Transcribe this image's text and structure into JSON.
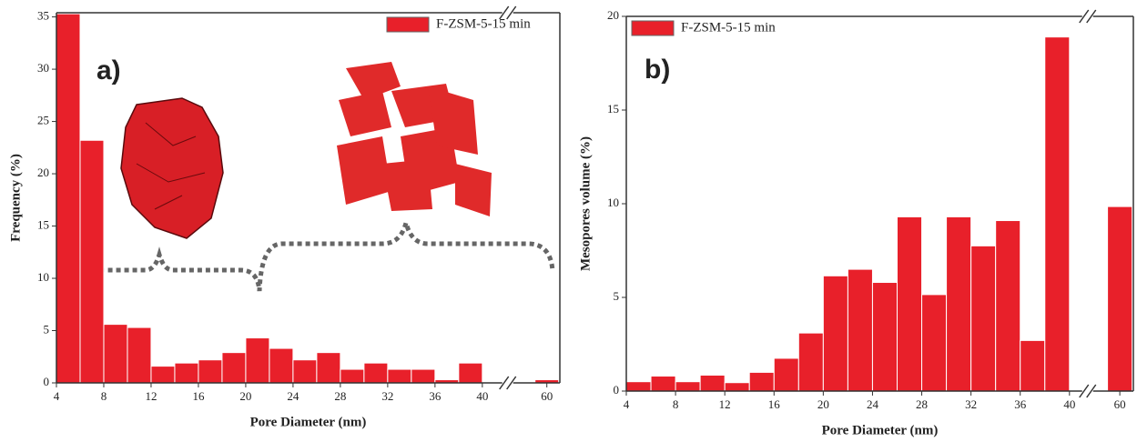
{
  "chart_data": [
    {
      "type": "bar",
      "panel_label": "a)",
      "x_label": "Pore Diameter (nm)",
      "y_label": "Frequency (%)",
      "x": [
        5,
        7,
        9,
        11,
        13,
        15,
        17,
        19,
        21,
        23,
        25,
        27,
        29,
        31,
        33,
        35,
        37,
        39,
        60
      ],
      "series": [
        {
          "name": "F-ZSM-5-15 min",
          "color": "#e8202a",
          "values": [
            35.3,
            23.2,
            5.6,
            5.3,
            1.6,
            1.9,
            2.2,
            2.9,
            4.3,
            3.3,
            2.2,
            2.9,
            1.3,
            1.9,
            1.3,
            1.3,
            0.3,
            1.9,
            0.3
          ]
        }
      ],
      "xlim": [
        4,
        62
      ],
      "xticks": [
        4,
        8,
        12,
        16,
        20,
        24,
        28,
        32,
        36,
        40,
        60
      ],
      "axis_break": true,
      "ylim": [
        0,
        35.4
      ],
      "yticks": [
        0,
        5,
        10,
        15,
        20,
        25,
        30,
        35
      ],
      "legend": "top-right"
    },
    {
      "type": "bar",
      "panel_label": "b)",
      "x_label": "Pore Diameter (nm)",
      "y_label": "Mesopores volume (%)",
      "x": [
        5,
        7,
        9,
        11,
        13,
        15,
        17,
        19,
        21,
        23,
        25,
        27,
        29,
        31,
        33,
        35,
        37,
        39,
        60
      ],
      "series": [
        {
          "name": "F-ZSM-5-15 min",
          "color": "#e8202a",
          "values": [
            0.5,
            0.8,
            0.5,
            0.85,
            0.45,
            1.0,
            1.75,
            3.1,
            6.15,
            6.5,
            5.8,
            9.3,
            5.15,
            9.3,
            7.75,
            9.1,
            2.7,
            18.9,
            9.85
          ]
        }
      ],
      "xlim": [
        4,
        62
      ],
      "xticks": [
        4,
        8,
        12,
        16,
        20,
        24,
        28,
        32,
        36,
        40,
        60
      ],
      "axis_break": true,
      "ylim": [
        0,
        20
      ],
      "yticks": [
        0,
        5,
        10,
        15,
        20
      ],
      "legend": "top-left"
    }
  ]
}
